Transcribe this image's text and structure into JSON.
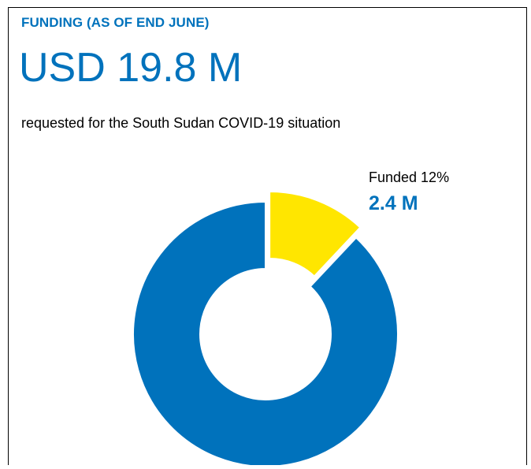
{
  "header": {
    "title": "FUNDING (AS OF END JUNE)",
    "amount": "USD 19.8 M",
    "subtitle": "requested for the South Sudan COVID-19 situation"
  },
  "annotation": {
    "funded_label": "Funded 12%",
    "funded_value": "2.4 M"
  },
  "chart_data": {
    "type": "pie",
    "title": "",
    "slices": [
      {
        "label": "Funded",
        "value": 12,
        "color": "#ffe600"
      },
      {
        "label": "",
        "value": 88,
        "color": "#0072bc"
      }
    ]
  }
}
